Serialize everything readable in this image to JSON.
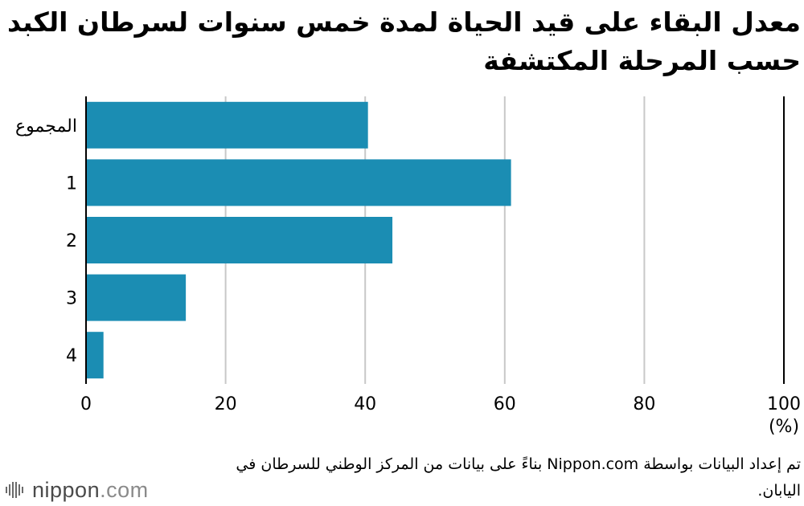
{
  "chart_data": {
    "type": "bar",
    "orientation": "horizontal",
    "title": "معدل البقاء على قيد الحياة لمدة خمس سنوات لسرطان الكبد حسب المرحلة المكتشفة",
    "categories": [
      "المجموع",
      "1",
      "2",
      "3",
      "4"
    ],
    "values": [
      40.4,
      60.9,
      43.9,
      14.3,
      2.5
    ],
    "xlim": [
      0,
      100
    ],
    "xticks": [
      "0",
      "20",
      "40",
      "60",
      "80",
      "100"
    ],
    "xunit": "(%)",
    "grid": true,
    "bar_color": "#1b8db3"
  },
  "source": "تم إعداد البيانات بواسطة Nippon.com بناءً على بيانات من المركز الوطني للسرطان في اليابان.",
  "logo": {
    "brand": "nippon",
    "tld": ".com"
  }
}
